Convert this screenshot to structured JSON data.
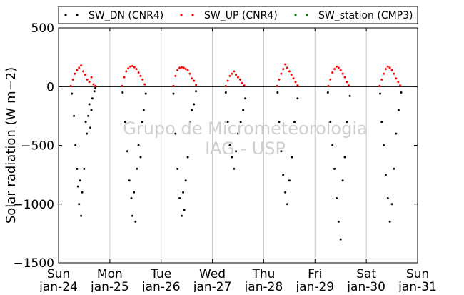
{
  "chart_data": {
    "type": "scatter",
    "ylabel": "Solar radiation (W m−2)",
    "ylim": [
      -1500,
      500
    ],
    "yticks": [
      500,
      0,
      -500,
      -1000,
      -1500
    ],
    "xlim": [
      0,
      7
    ],
    "xticks": [
      {
        "value": 0,
        "day": "Sun",
        "date": "Jan-24"
      },
      {
        "value": 1,
        "day": "Mon",
        "date": "Jan-25"
      },
      {
        "value": 2,
        "day": "Tue",
        "date": "Jan-26"
      },
      {
        "value": 3,
        "day": "Wed",
        "date": "Jan-27"
      },
      {
        "value": 4,
        "day": "Thu",
        "date": "Jan-28"
      },
      {
        "value": 5,
        "day": "Fri",
        "date": "Jan-29"
      },
      {
        "value": 6,
        "day": "Sat",
        "date": "Jan-30"
      },
      {
        "value": 7,
        "day": "Sun",
        "date": "Jan-31"
      }
    ],
    "grid": "vertical",
    "legend_position": "top",
    "watermark": [
      "Grupo de Micrometeorologia",
      "IAG - USP"
    ],
    "series": [
      {
        "name": "SW_DN (CNR4)",
        "color": "#000000",
        "points": [
          [
            0.26,
            -60
          ],
          [
            0.3,
            -250
          ],
          [
            0.33,
            -500
          ],
          [
            0.36,
            -700
          ],
          [
            0.38,
            -850
          ],
          [
            0.4,
            -1000
          ],
          [
            0.42,
            -800
          ],
          [
            0.44,
            -1100
          ],
          [
            0.46,
            -900
          ],
          [
            0.5,
            -700
          ],
          [
            0.53,
            -300
          ],
          [
            0.55,
            -400
          ],
          [
            0.58,
            -250
          ],
          [
            0.6,
            -150
          ],
          [
            0.62,
            -350
          ],
          [
            0.64,
            -200
          ],
          [
            0.66,
            -100
          ],
          [
            0.7,
            -40
          ],
          [
            0.72,
            -10
          ],
          [
            1.25,
            -50
          ],
          [
            1.3,
            -300
          ],
          [
            1.34,
            -550
          ],
          [
            1.38,
            -800
          ],
          [
            1.42,
            -950
          ],
          [
            1.44,
            -1100
          ],
          [
            1.47,
            -900
          ],
          [
            1.5,
            -1150
          ],
          [
            1.53,
            -700
          ],
          [
            1.56,
            -500
          ],
          [
            1.6,
            -600
          ],
          [
            1.63,
            -300
          ],
          [
            1.66,
            -200
          ],
          [
            1.7,
            -60
          ],
          [
            2.24,
            -60
          ],
          [
            2.28,
            -400
          ],
          [
            2.32,
            -700
          ],
          [
            2.36,
            -950
          ],
          [
            2.4,
            -1100
          ],
          [
            2.43,
            -900
          ],
          [
            2.45,
            -1050
          ],
          [
            2.48,
            -800
          ],
          [
            2.52,
            -600
          ],
          [
            2.56,
            -300
          ],
          [
            2.6,
            -200
          ],
          [
            2.64,
            -150
          ],
          [
            2.68,
            -40
          ],
          [
            3.26,
            -50
          ],
          [
            3.3,
            -300
          ],
          [
            3.34,
            -500
          ],
          [
            3.38,
            -600
          ],
          [
            3.42,
            -700
          ],
          [
            3.46,
            -550
          ],
          [
            3.5,
            -400
          ],
          [
            3.55,
            -300
          ],
          [
            3.6,
            -200
          ],
          [
            3.64,
            -100
          ],
          [
            4.27,
            -50
          ],
          [
            4.3,
            -300
          ],
          [
            4.34,
            -550
          ],
          [
            4.38,
            -750
          ],
          [
            4.42,
            -900
          ],
          [
            4.46,
            -1000
          ],
          [
            4.5,
            -800
          ],
          [
            4.55,
            -600
          ],
          [
            4.6,
            -300
          ],
          [
            4.66,
            -100
          ],
          [
            5.25,
            -50
          ],
          [
            5.3,
            -300
          ],
          [
            5.34,
            -500
          ],
          [
            5.38,
            -700
          ],
          [
            5.42,
            -950
          ],
          [
            5.46,
            -1150
          ],
          [
            5.5,
            -1300
          ],
          [
            5.54,
            -800
          ],
          [
            5.58,
            -600
          ],
          [
            5.62,
            -300
          ],
          [
            5.68,
            -80
          ],
          [
            6.27,
            -60
          ],
          [
            6.3,
            -300
          ],
          [
            6.34,
            -500
          ],
          [
            6.38,
            -750
          ],
          [
            6.42,
            -950
          ],
          [
            6.46,
            -1150
          ],
          [
            6.5,
            -1000
          ],
          [
            6.54,
            -700
          ],
          [
            6.58,
            -400
          ],
          [
            6.63,
            -200
          ],
          [
            6.68,
            -50
          ]
        ]
      },
      {
        "name": "SW_UP (CNR4)",
        "color": "#ff0000",
        "points": [
          [
            0.24,
            5
          ],
          [
            0.28,
            60
          ],
          [
            0.32,
            110
          ],
          [
            0.36,
            140
          ],
          [
            0.4,
            160
          ],
          [
            0.44,
            180
          ],
          [
            0.48,
            130
          ],
          [
            0.52,
            100
          ],
          [
            0.56,
            60
          ],
          [
            0.6,
            40
          ],
          [
            0.64,
            80
          ],
          [
            0.68,
            20
          ],
          [
            0.72,
            5
          ],
          [
            1.24,
            5
          ],
          [
            1.28,
            80
          ],
          [
            1.32,
            130
          ],
          [
            1.36,
            155
          ],
          [
            1.4,
            170
          ],
          [
            1.44,
            175
          ],
          [
            1.48,
            165
          ],
          [
            1.52,
            150
          ],
          [
            1.56,
            120
          ],
          [
            1.6,
            90
          ],
          [
            1.64,
            60
          ],
          [
            1.68,
            20
          ],
          [
            2.24,
            5
          ],
          [
            2.28,
            90
          ],
          [
            2.32,
            140
          ],
          [
            2.36,
            160
          ],
          [
            2.4,
            165
          ],
          [
            2.44,
            160
          ],
          [
            2.48,
            150
          ],
          [
            2.52,
            140
          ],
          [
            2.56,
            110
          ],
          [
            2.6,
            70
          ],
          [
            2.64,
            50
          ],
          [
            2.68,
            15
          ],
          [
            3.26,
            5
          ],
          [
            3.3,
            50
          ],
          [
            3.34,
            90
          ],
          [
            3.38,
            110
          ],
          [
            3.42,
            130
          ],
          [
            3.46,
            100
          ],
          [
            3.5,
            80
          ],
          [
            3.54,
            60
          ],
          [
            3.58,
            30
          ],
          [
            3.62,
            10
          ],
          [
            4.26,
            5
          ],
          [
            4.3,
            60
          ],
          [
            4.34,
            110
          ],
          [
            4.38,
            150
          ],
          [
            4.42,
            190
          ],
          [
            4.46,
            160
          ],
          [
            4.5,
            130
          ],
          [
            4.54,
            100
          ],
          [
            4.58,
            70
          ],
          [
            4.62,
            40
          ],
          [
            4.66,
            10
          ],
          [
            5.26,
            5
          ],
          [
            5.3,
            60
          ],
          [
            5.34,
            120
          ],
          [
            5.38,
            150
          ],
          [
            5.42,
            170
          ],
          [
            5.46,
            160
          ],
          [
            5.5,
            140
          ],
          [
            5.54,
            110
          ],
          [
            5.58,
            80
          ],
          [
            5.62,
            40
          ],
          [
            5.66,
            10
          ],
          [
            6.26,
            5
          ],
          [
            6.3,
            60
          ],
          [
            6.34,
            110
          ],
          [
            6.38,
            150
          ],
          [
            6.42,
            170
          ],
          [
            6.46,
            160
          ],
          [
            6.5,
            140
          ],
          [
            6.54,
            110
          ],
          [
            6.58,
            70
          ],
          [
            6.62,
            40
          ],
          [
            6.66,
            10
          ]
        ]
      },
      {
        "name": "SW_station (CMP3)",
        "color": "#008000",
        "points": []
      }
    ]
  }
}
